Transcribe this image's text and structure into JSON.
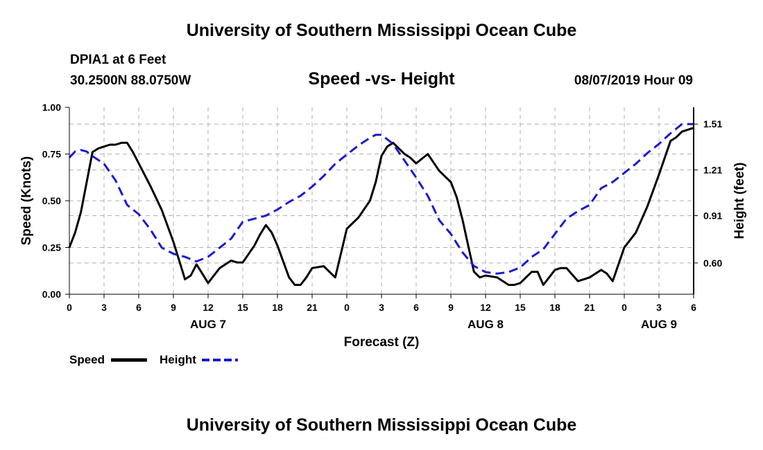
{
  "page": {
    "title_top": "University of Southern Mississippi Ocean Cube",
    "title_bottom": "University of Southern Mississippi Ocean Cube",
    "station_line1": "DPIA1 at 6 Feet",
    "station_line2": "30.2500N 88.0750W",
    "datetime": "08/07/2019 Hour 09"
  },
  "colors": {
    "speed": "#000000",
    "height": "#1a1ad0",
    "grid": "#b0b0b0"
  },
  "chart_data": {
    "type": "line",
    "title": "Speed -vs- Height",
    "xlabel": "Forecast (Z)",
    "ylabel": "Speed (Knots)",
    "y2label": "Height (feet)",
    "xlim": [
      0,
      54
    ],
    "ylim": [
      0,
      1.0
    ],
    "y2lim": [
      0.395,
      1.62
    ],
    "x_ticks": [
      0,
      3,
      6,
      9,
      12,
      15,
      18,
      21,
      24,
      27,
      30,
      33,
      36,
      39,
      42,
      45,
      48,
      51,
      54
    ],
    "x_tick_labels": [
      "0",
      "3",
      "6",
      "9",
      "12",
      "15",
      "18",
      "21",
      "0",
      "3",
      "6",
      "9",
      "12",
      "15",
      "18",
      "21",
      "0",
      "3",
      "6"
    ],
    "y_ticks": [
      0.0,
      0.25,
      0.5,
      0.75,
      1.0
    ],
    "y_tick_labels": [
      "0.00",
      "0.25",
      "0.50",
      "0.75",
      "1.00"
    ],
    "y2_ticks": [
      0.6,
      0.91,
      1.21,
      1.51
    ],
    "y2_tick_labels": [
      "0.60",
      "0.91",
      "1.21",
      "1.51"
    ],
    "day_labels": [
      {
        "x": 12,
        "label": "AUG 7"
      },
      {
        "x": 36,
        "label": "AUG 8"
      },
      {
        "x": 51,
        "label": "AUG 9"
      }
    ],
    "grid": true,
    "legend": {
      "position": "bottom-left",
      "entries": [
        "Speed",
        "Height"
      ]
    },
    "series": [
      {
        "name": "Speed",
        "axis": "left",
        "x": [
          0,
          0.5,
          1,
          1.5,
          2,
          2.5,
          3,
          3.5,
          4,
          4.5,
          5,
          5.5,
          6,
          7,
          8,
          9,
          10,
          10.5,
          11,
          11.5,
          12,
          13,
          14,
          14.5,
          15,
          16,
          16.5,
          17,
          17.5,
          18,
          19,
          19.5,
          20,
          20.5,
          21,
          22,
          23,
          24,
          25,
          26,
          26.5,
          27,
          27.5,
          28,
          28.5,
          29,
          29.5,
          30,
          31,
          32,
          33,
          33.5,
          34,
          35,
          35.5,
          36,
          37,
          38,
          38.5,
          39,
          40,
          40.5,
          41,
          42,
          42.5,
          43,
          44,
          44.5,
          45,
          46,
          46.5,
          47,
          48,
          49,
          50,
          51,
          52,
          52.5,
          53,
          54
        ],
        "y": [
          0.25,
          0.33,
          0.44,
          0.6,
          0.76,
          0.78,
          0.79,
          0.8,
          0.8,
          0.81,
          0.81,
          0.76,
          0.7,
          0.58,
          0.45,
          0.28,
          0.08,
          0.1,
          0.16,
          0.11,
          0.06,
          0.14,
          0.18,
          0.17,
          0.17,
          0.26,
          0.32,
          0.37,
          0.33,
          0.26,
          0.09,
          0.05,
          0.05,
          0.09,
          0.14,
          0.15,
          0.09,
          0.35,
          0.41,
          0.5,
          0.6,
          0.74,
          0.79,
          0.81,
          0.78,
          0.75,
          0.73,
          0.7,
          0.75,
          0.66,
          0.6,
          0.52,
          0.4,
          0.12,
          0.09,
          0.1,
          0.09,
          0.05,
          0.05,
          0.06,
          0.12,
          0.12,
          0.05,
          0.13,
          0.14,
          0.14,
          0.07,
          0.08,
          0.09,
          0.13,
          0.11,
          0.07,
          0.25,
          0.33,
          0.47,
          0.64,
          0.82,
          0.84,
          0.87,
          0.89
        ]
      },
      {
        "name": "Height",
        "axis": "right",
        "x": [
          0,
          0.5,
          1,
          1.5,
          2,
          3,
          4,
          5,
          6,
          7,
          8,
          9,
          10,
          11,
          12,
          13,
          14,
          15,
          16,
          17,
          18,
          19,
          20,
          21,
          22,
          23,
          24,
          25,
          26,
          26.5,
          27,
          28,
          29,
          30,
          31,
          32,
          33,
          34,
          35,
          36,
          37,
          38,
          39,
          40,
          41,
          42,
          43,
          44,
          45,
          46,
          47,
          48,
          49,
          50,
          51,
          52,
          53,
          54
        ],
        "y": [
          1.29,
          1.33,
          1.34,
          1.33,
          1.3,
          1.25,
          1.14,
          0.98,
          0.92,
          0.82,
          0.7,
          0.66,
          0.64,
          0.61,
          0.64,
          0.7,
          0.76,
          0.87,
          0.89,
          0.91,
          0.95,
          1.0,
          1.04,
          1.1,
          1.17,
          1.25,
          1.31,
          1.37,
          1.42,
          1.44,
          1.44,
          1.38,
          1.27,
          1.16,
          1.04,
          0.88,
          0.79,
          0.67,
          0.58,
          0.54,
          0.53,
          0.54,
          0.57,
          0.64,
          0.69,
          0.79,
          0.89,
          0.94,
          0.98,
          1.09,
          1.13,
          1.19,
          1.25,
          1.32,
          1.38,
          1.45,
          1.51,
          1.51
        ]
      }
    ]
  }
}
